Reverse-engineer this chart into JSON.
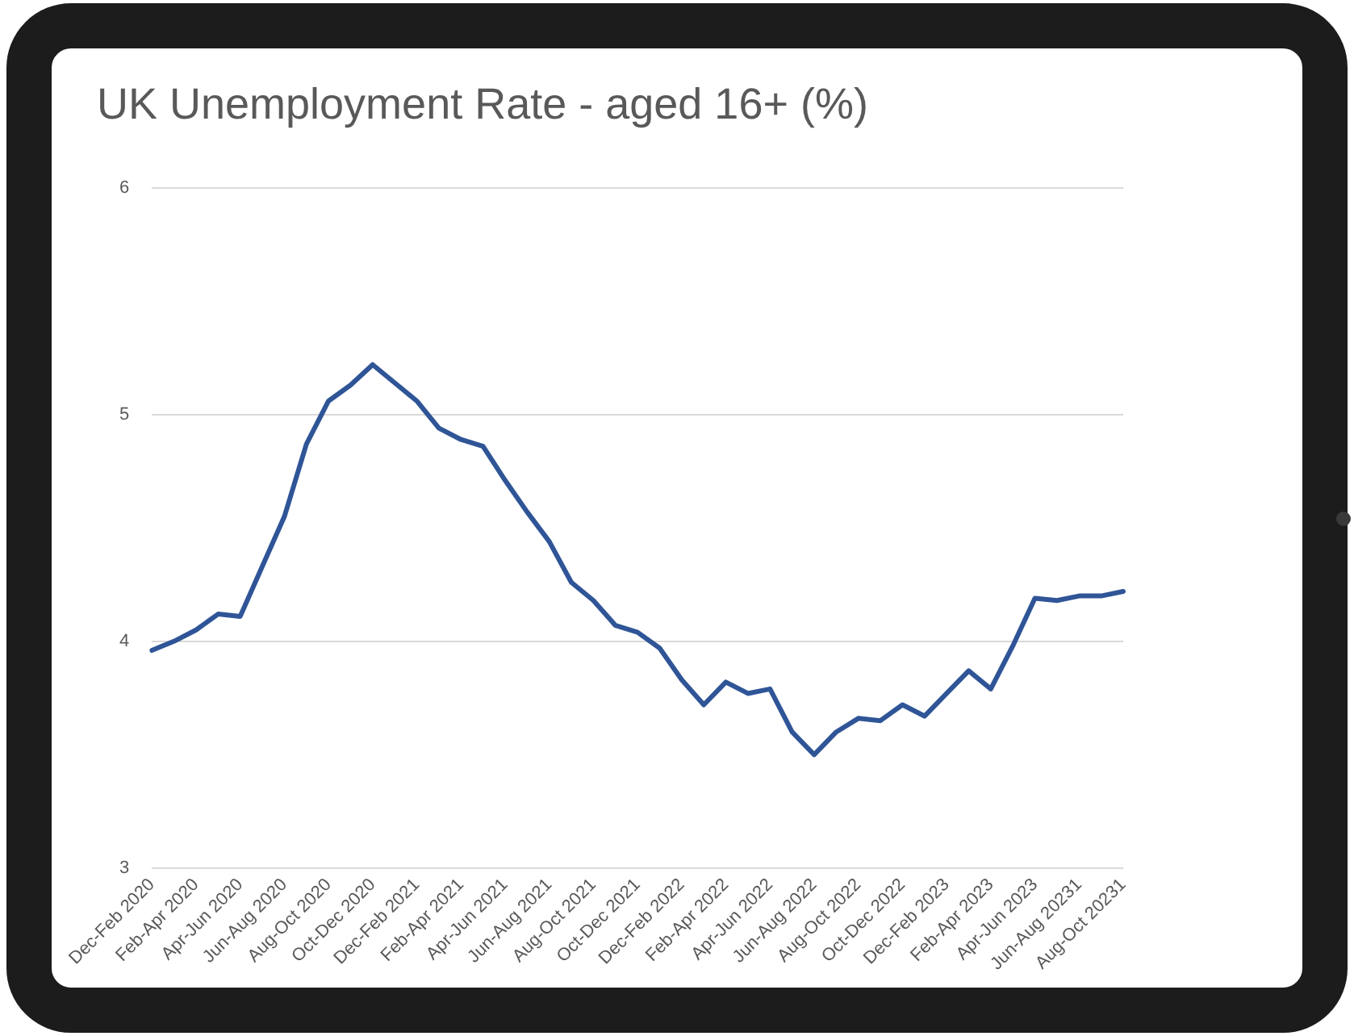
{
  "chart_data": {
    "type": "line",
    "title": "UK Unemployment Rate - aged 16+ (%)",
    "categories": [
      "Dec-Feb 2020",
      null,
      "Feb-Apr 2020",
      null,
      "Apr-Jun 2020",
      null,
      "Jun-Aug 2020",
      null,
      "Aug-Oct 2020",
      null,
      "Oct-Dec 2020",
      null,
      "Dec-Feb 2021",
      null,
      "Feb-Apr 2021",
      null,
      "Apr-Jun 2021",
      null,
      "Jun-Aug 2021",
      null,
      "Aug-Oct 2021",
      null,
      "Oct-Dec 2021",
      null,
      "Dec-Feb 2022",
      null,
      "Feb-Apr 2022",
      null,
      "Apr-Jun 2022",
      null,
      "Jun-Aug 2022",
      null,
      "Aug-Oct 2022",
      null,
      "Oct-Dec 2022",
      null,
      "Dec-Feb 2023",
      null,
      "Feb-Apr 2023",
      null,
      "Apr-Jun 2023",
      null,
      "Jun-Aug 20231",
      null,
      "Aug-Oct 20231"
    ],
    "series": [
      {
        "color": "#2f5597",
        "values": [
          3.96,
          4.0,
          4.05,
          4.12,
          4.11,
          4.33,
          4.55,
          4.87,
          5.06,
          5.13,
          5.22,
          5.14,
          5.06,
          4.94,
          4.89,
          4.86,
          4.71,
          4.57,
          4.44,
          4.26,
          4.18,
          4.07,
          4.04,
          3.97,
          3.83,
          3.72,
          3.82,
          3.77,
          3.79,
          3.6,
          3.5,
          3.6,
          3.66,
          3.65,
          3.72,
          3.67,
          3.77,
          3.87,
          3.79,
          3.98,
          4.19,
          4.18,
          4.2,
          4.2,
          4.22
        ]
      }
    ],
    "ylim": [
      3,
      6
    ],
    "yticks": [
      3,
      4,
      5,
      6
    ],
    "grid": "y",
    "legend": false,
    "marker": "none",
    "line_style": "solid"
  }
}
